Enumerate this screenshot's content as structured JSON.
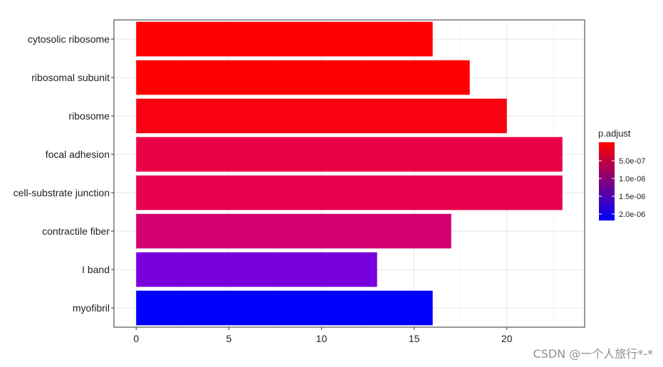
{
  "chart_data": {
    "type": "bar",
    "orientation": "horizontal",
    "categories": [
      "cytosolic ribosome",
      "ribosomal subunit",
      "ribosome",
      "focal adhesion",
      "cell-substrate junction",
      "contractile fiber",
      "I band",
      "myofibril"
    ],
    "values": [
      16,
      18,
      20,
      23,
      23,
      17,
      13,
      16
    ],
    "bar_colors": [
      "#ff0000",
      "#ff0000",
      "#fb0011",
      "#ea0047",
      "#e8004f",
      "#d20070",
      "#7800dd",
      "#0000ff"
    ],
    "xlim": [
      -1.2,
      24.2
    ],
    "xticks": [
      0,
      5,
      10,
      15,
      20
    ],
    "grid": true,
    "legend": {
      "title": "p.adjust",
      "placement": "right",
      "gradient_top": "#ff0000",
      "gradient_bottom": "#0000ff",
      "tick_labels": [
        "5.0e-07",
        "1.0e-06",
        "1.5e-06",
        "2.0e-06"
      ]
    }
  },
  "watermark": "CSDN @一个人旅行*-*"
}
